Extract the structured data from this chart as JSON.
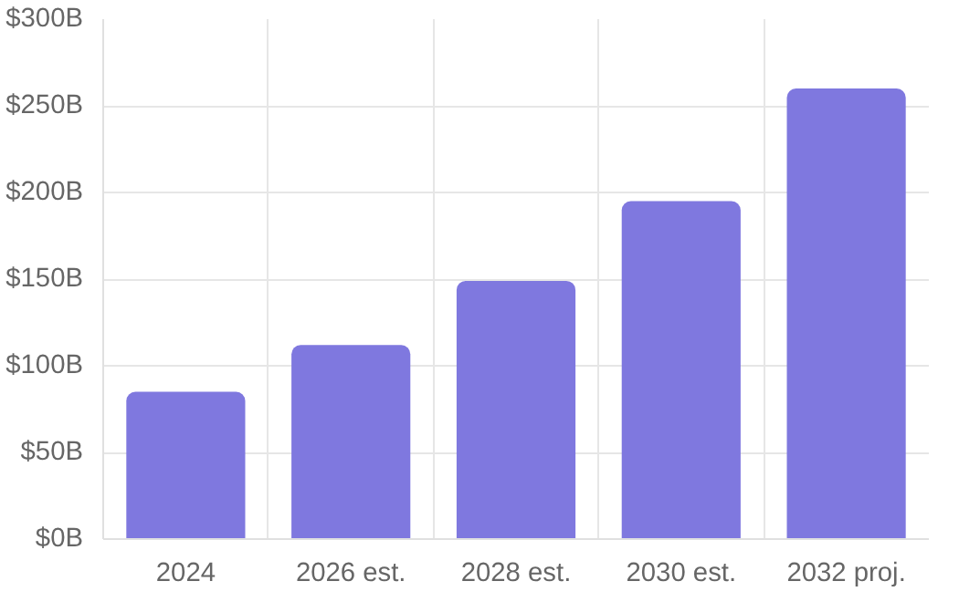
{
  "chart_data": {
    "type": "bar",
    "categories": [
      "2024",
      "2026 est.",
      "2028 est.",
      "2030 est.",
      "2032 proj."
    ],
    "values": [
      85,
      112,
      149,
      195,
      260
    ],
    "color": "#7f78df",
    "ylim": [
      0,
      300
    ],
    "yticks": [
      {
        "value": 0,
        "label": "$0B"
      },
      {
        "value": 50,
        "label": "$50B"
      },
      {
        "value": 100,
        "label": "$100B"
      },
      {
        "value": 150,
        "label": "$150B"
      },
      {
        "value": 200,
        "label": "$200B"
      },
      {
        "value": 250,
        "label": "$250B"
      },
      {
        "value": 300,
        "label": "$300B"
      }
    ],
    "grid": true
  }
}
